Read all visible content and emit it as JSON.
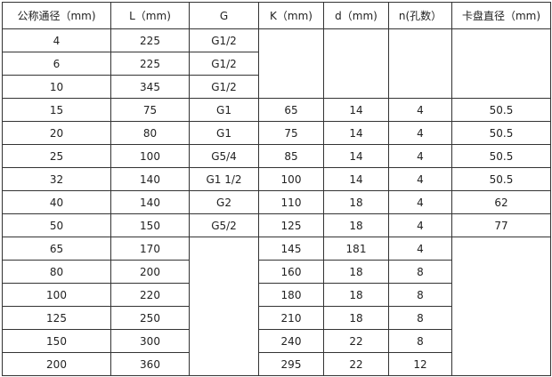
{
  "headers": [
    "公称通径（mm)",
    "L（mm)",
    "G",
    "K（mm)",
    "d（mm)",
    "n(孔数）",
    "卡盘直径（mm)"
  ],
  "rows": [
    [
      "4",
      "225",
      "G1/2",
      "",
      "",
      "",
      ""
    ],
    [
      "6",
      "225",
      "G1/2",
      "",
      "",
      "",
      ""
    ],
    [
      "10",
      "345",
      "G1/2",
      "",
      "",
      "",
      ""
    ],
    [
      "15",
      "75",
      "G1",
      "65",
      "14",
      "4",
      "50.5"
    ],
    [
      "20",
      "80",
      "G1",
      "75",
      "14",
      "4",
      "50.5"
    ],
    [
      "25",
      "100",
      "G5/4",
      "85",
      "14",
      "4",
      "50.5"
    ],
    [
      "32",
      "140",
      "G1  1/2",
      "100",
      "14",
      "4",
      "50.5"
    ],
    [
      "40",
      "140",
      "G2",
      "110",
      "18",
      "4",
      "62"
    ],
    [
      "50",
      "150",
      "G5/2",
      "125",
      "18",
      "4",
      "77"
    ],
    [
      "65",
      "170",
      "",
      "145",
      "181",
      "4",
      ""
    ],
    [
      "80",
      "200",
      "",
      "160",
      "18",
      "8",
      ""
    ],
    [
      "100",
      "220",
      "",
      "180",
      "18",
      "8",
      ""
    ],
    [
      "125",
      "250",
      "",
      "210",
      "18",
      "8",
      ""
    ],
    [
      "150",
      "300",
      "",
      "240",
      "22",
      "8",
      ""
    ],
    [
      "200",
      "360",
      "",
      "295",
      "22",
      "12",
      ""
    ]
  ]
}
